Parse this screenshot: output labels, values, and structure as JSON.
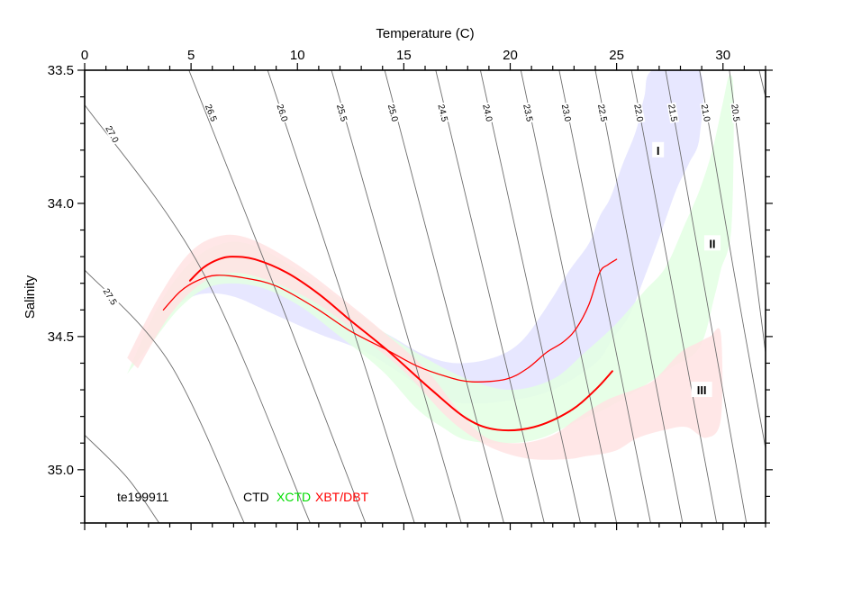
{
  "chart_data": {
    "type": "scatter",
    "title": "",
    "xlabel": "Temperature (C)",
    "ylabel": "Salinity",
    "xlim": [
      0,
      32
    ],
    "ylim": [
      33.5,
      35.2
    ],
    "y_inverted": true,
    "x_axis_position": "top",
    "x_ticks": [
      0,
      5,
      10,
      15,
      20,
      25,
      30
    ],
    "x_tick_labels": [
      "0",
      "5",
      "10",
      "15",
      "20",
      "25",
      "30"
    ],
    "x_minor_step": 1,
    "y_ticks": [
      33.5,
      34.0,
      34.5,
      35.0
    ],
    "y_tick_labels": [
      "33.5",
      "34.0",
      "34.5",
      "35.0"
    ],
    "y_minor_step": 0.1,
    "grid": false,
    "annotation": "te199911",
    "legend": [
      {
        "label": "CTD",
        "color": "#000000"
      },
      {
        "label": "XCTD",
        "color": "#00dd00"
      },
      {
        "label": "XBT/DBT",
        "color": "#ff0000"
      }
    ],
    "isopycnals": [
      {
        "sigma": "28.0",
        "label": "",
        "points": [
          [
            0,
            34.87
          ],
          [
            2.0,
            35.03
          ],
          [
            3.5,
            35.2
          ]
        ]
      },
      {
        "sigma": "27.5",
        "label": "27.5",
        "label_at": [
          1.2,
          34.35
        ],
        "points": [
          [
            0,
            34.25
          ],
          [
            4.0,
            34.6
          ],
          [
            7.5,
            35.2
          ]
        ]
      },
      {
        "sigma": "27.0",
        "label": "27.0",
        "label_at": [
          1.3,
          33.74
        ],
        "points": [
          [
            0,
            33.63
          ],
          [
            5.5,
            34.25
          ],
          [
            10.6,
            35.2
          ]
        ]
      },
      {
        "sigma": "26.5",
        "label": "26.5",
        "label_at": [
          5.95,
          33.66
        ],
        "points": [
          [
            4.9,
            33.5
          ],
          [
            9.2,
            34.37
          ],
          [
            13.2,
            35.2
          ]
        ]
      },
      {
        "sigma": "26.0",
        "label": "26.0",
        "label_at": [
          9.3,
          33.66
        ],
        "points": [
          [
            8.6,
            33.5
          ],
          [
            12.2,
            34.37
          ],
          [
            15.5,
            35.2
          ]
        ]
      },
      {
        "sigma": "25.5",
        "label": "25.5",
        "label_at": [
          12.1,
          33.66
        ],
        "points": [
          [
            11.6,
            33.5
          ],
          [
            14.7,
            34.37
          ],
          [
            17.7,
            35.2
          ]
        ]
      },
      {
        "sigma": "25.0",
        "label": "25.0",
        "label_at": [
          14.5,
          33.66
        ],
        "points": [
          [
            14.1,
            33.5
          ],
          [
            16.95,
            34.37
          ],
          [
            19.7,
            35.2
          ]
        ]
      },
      {
        "sigma": "24.5",
        "label": "24.5",
        "label_at": [
          16.85,
          33.66
        ],
        "points": [
          [
            16.5,
            33.5
          ],
          [
            19.1,
            34.37
          ],
          [
            21.6,
            35.2
          ]
        ]
      },
      {
        "sigma": "24.0",
        "label": "24.0",
        "label_at": [
          18.95,
          33.66
        ],
        "points": [
          [
            18.6,
            33.5
          ],
          [
            21.0,
            34.37
          ],
          [
            23.3,
            35.2
          ]
        ]
      },
      {
        "sigma": "23.5",
        "label": "23.5",
        "label_at": [
          20.85,
          33.66
        ],
        "points": [
          [
            20.5,
            33.5
          ],
          [
            22.8,
            34.37
          ],
          [
            25.0,
            35.2
          ]
        ]
      },
      {
        "sigma": "23.0",
        "label": "23.0",
        "label_at": [
          22.65,
          33.66
        ],
        "points": [
          [
            22.3,
            33.5
          ],
          [
            24.5,
            34.37
          ],
          [
            26.6,
            35.2
          ]
        ]
      },
      {
        "sigma": "22.5",
        "label": "22.5",
        "label_at": [
          24.35,
          33.66
        ],
        "points": [
          [
            24.0,
            33.5
          ],
          [
            26.1,
            34.37
          ],
          [
            28.1,
            35.2
          ]
        ]
      },
      {
        "sigma": "22.0",
        "label": "22.0",
        "label_at": [
          26.05,
          33.66
        ],
        "points": [
          [
            25.7,
            33.5
          ],
          [
            27.75,
            34.37
          ],
          [
            29.7,
            35.2
          ]
        ]
      },
      {
        "sigma": "21.5",
        "label": "21.5",
        "label_at": [
          27.65,
          33.66
        ],
        "points": [
          [
            27.3,
            33.5
          ],
          [
            29.25,
            34.37
          ],
          [
            31.1,
            35.2
          ]
        ]
      },
      {
        "sigma": "21.0",
        "label": "21.0",
        "label_at": [
          29.2,
          33.66
        ],
        "points": [
          [
            28.9,
            33.5
          ],
          [
            30.5,
            34.25
          ],
          [
            32.0,
            34.92
          ]
        ]
      },
      {
        "sigma": "20.5",
        "label": "20.5",
        "label_at": [
          30.6,
          33.66
        ],
        "points": [
          [
            30.3,
            33.5
          ],
          [
            31.15,
            34.03
          ],
          [
            32.0,
            34.56
          ]
        ]
      },
      {
        "sigma": "20.0",
        "label": "",
        "points": [
          [
            31.7,
            33.5
          ],
          [
            32.0,
            33.6
          ]
        ]
      }
    ],
    "bands": [
      {
        "name": "I",
        "label_at": [
          26.95,
          33.8
        ],
        "color": "#e3e3ff",
        "polygon": [
          [
            3.6,
            34.41
          ],
          [
            5.0,
            34.3
          ],
          [
            6.2,
            34.26
          ],
          [
            8.0,
            34.28
          ],
          [
            10.0,
            34.33
          ],
          [
            12.0,
            34.4
          ],
          [
            14.2,
            34.49
          ],
          [
            16.0,
            34.57
          ],
          [
            17.5,
            34.6
          ],
          [
            19.2,
            34.58
          ],
          [
            20.5,
            34.52
          ],
          [
            21.7,
            34.39
          ],
          [
            22.8,
            34.25
          ],
          [
            23.7,
            34.15
          ],
          [
            24.2,
            34.05
          ],
          [
            24.7,
            33.98
          ],
          [
            25.3,
            33.85
          ],
          [
            25.9,
            33.73
          ],
          [
            26.3,
            33.6
          ],
          [
            26.7,
            33.5
          ],
          [
            28.9,
            33.5
          ],
          [
            28.9,
            33.75
          ],
          [
            28.4,
            33.85
          ],
          [
            27.8,
            33.95
          ],
          [
            27.0,
            34.13
          ],
          [
            26.3,
            34.28
          ],
          [
            25.6,
            34.42
          ],
          [
            24.8,
            34.51
          ],
          [
            24.0,
            34.6
          ],
          [
            22.0,
            34.7
          ],
          [
            20.0,
            34.74
          ],
          [
            17.7,
            34.75
          ],
          [
            16.0,
            34.7
          ],
          [
            14.5,
            34.62
          ],
          [
            13.0,
            34.55
          ],
          [
            11.0,
            34.49
          ],
          [
            9.0,
            34.42
          ],
          [
            7.0,
            34.35
          ],
          [
            5.5,
            34.34
          ],
          [
            4.3,
            34.38
          ]
        ]
      },
      {
        "name": "II",
        "label_at": [
          29.5,
          34.15
        ],
        "color": "#e3ffe3",
        "polygon": [
          [
            2.0,
            34.64
          ],
          [
            3.5,
            34.38
          ],
          [
            5.0,
            34.22
          ],
          [
            6.5,
            34.15
          ],
          [
            8.0,
            34.16
          ],
          [
            10.0,
            34.25
          ],
          [
            12.0,
            34.36
          ],
          [
            14.0,
            34.48
          ],
          [
            16.0,
            34.58
          ],
          [
            18.0,
            34.66
          ],
          [
            20.0,
            34.7
          ],
          [
            22.0,
            34.66
          ],
          [
            23.5,
            34.56
          ],
          [
            25.0,
            34.45
          ],
          [
            26.3,
            34.33
          ],
          [
            27.3,
            34.24
          ],
          [
            28.2,
            34.08
          ],
          [
            28.9,
            33.95
          ],
          [
            29.5,
            33.8
          ],
          [
            30.0,
            33.62
          ],
          [
            30.3,
            33.52
          ],
          [
            30.5,
            33.6
          ],
          [
            30.4,
            34.09
          ],
          [
            29.9,
            34.25
          ],
          [
            29.6,
            34.35
          ],
          [
            28.9,
            34.54
          ],
          [
            27.5,
            34.62
          ],
          [
            26.0,
            34.7
          ],
          [
            24.5,
            34.77
          ],
          [
            23.1,
            34.82
          ],
          [
            21.5,
            34.88
          ],
          [
            20.0,
            34.9
          ],
          [
            18.0,
            34.89
          ],
          [
            16.8,
            34.84
          ],
          [
            15.6,
            34.77
          ],
          [
            14.0,
            34.63
          ],
          [
            12.0,
            34.5
          ],
          [
            10.0,
            34.38
          ],
          [
            8.0,
            34.31
          ],
          [
            6.0,
            34.31
          ],
          [
            4.5,
            34.39
          ],
          [
            3.2,
            34.52
          ]
        ]
      },
      {
        "name": "III",
        "label_at": [
          29.0,
          34.7
        ],
        "color": "#ffe3e3",
        "polygon": [
          [
            2.0,
            34.58
          ],
          [
            3.5,
            34.35
          ],
          [
            5.0,
            34.18
          ],
          [
            6.5,
            34.12
          ],
          [
            8.0,
            34.14
          ],
          [
            10.0,
            34.23
          ],
          [
            12.0,
            34.35
          ],
          [
            14.0,
            34.48
          ],
          [
            16.0,
            34.62
          ],
          [
            17.6,
            34.78
          ],
          [
            18.9,
            34.88
          ],
          [
            20.5,
            34.9
          ],
          [
            22.0,
            34.87
          ],
          [
            23.1,
            34.81
          ],
          [
            24.5,
            34.74
          ],
          [
            25.8,
            34.7
          ],
          [
            26.8,
            34.66
          ],
          [
            28.0,
            34.56
          ],
          [
            28.9,
            34.52
          ],
          [
            29.4,
            34.5
          ],
          [
            29.9,
            34.49
          ],
          [
            29.9,
            34.81
          ],
          [
            29.2,
            34.88
          ],
          [
            28.3,
            34.84
          ],
          [
            27.3,
            34.85
          ],
          [
            26.0,
            34.88
          ],
          [
            24.9,
            34.93
          ],
          [
            23.5,
            34.95
          ],
          [
            22.7,
            34.96
          ],
          [
            21.0,
            34.96
          ],
          [
            19.5,
            34.93
          ],
          [
            18.3,
            34.88
          ],
          [
            17.0,
            34.8
          ],
          [
            15.0,
            34.63
          ],
          [
            13.0,
            34.5
          ],
          [
            11.0,
            34.38
          ],
          [
            9.0,
            34.3
          ],
          [
            7.0,
            34.26
          ],
          [
            5.5,
            34.3
          ],
          [
            4.0,
            34.42
          ],
          [
            2.5,
            34.62
          ]
        ]
      }
    ],
    "series": [
      {
        "name": "profile-mean-thick",
        "color": "#ff0000",
        "width": 2,
        "points": [
          [
            4.95,
            34.29
          ],
          [
            5.6,
            34.24
          ],
          [
            6.3,
            34.21
          ],
          [
            6.94,
            34.2
          ],
          [
            8.0,
            34.21
          ],
          [
            9.5,
            34.26
          ],
          [
            11.0,
            34.34
          ],
          [
            12.5,
            34.44
          ],
          [
            14.2,
            34.55
          ],
          [
            16.3,
            34.7
          ],
          [
            18.0,
            34.81
          ],
          [
            19.4,
            34.85
          ],
          [
            21.1,
            34.84
          ],
          [
            22.8,
            34.78
          ],
          [
            24.0,
            34.7
          ],
          [
            24.8,
            34.63
          ]
        ]
      },
      {
        "name": "profile-mean-thin",
        "color": "#ff0000",
        "width": 1.3,
        "points": [
          [
            3.7,
            34.4
          ],
          [
            4.5,
            34.33
          ],
          [
            5.3,
            34.29
          ],
          [
            6.2,
            34.27
          ],
          [
            7.5,
            34.28
          ],
          [
            9.0,
            34.31
          ],
          [
            10.8,
            34.39
          ],
          [
            12.5,
            34.48
          ],
          [
            14.2,
            34.55
          ],
          [
            15.6,
            34.61
          ],
          [
            17.0,
            34.65
          ],
          [
            18.2,
            34.67
          ],
          [
            19.8,
            34.66
          ],
          [
            20.8,
            34.62
          ],
          [
            21.7,
            34.56
          ],
          [
            22.5,
            34.52
          ],
          [
            23.1,
            34.47
          ],
          [
            23.7,
            34.38
          ],
          [
            24.2,
            34.26
          ],
          [
            24.6,
            34.23
          ],
          [
            25.0,
            34.21
          ]
        ]
      }
    ]
  }
}
